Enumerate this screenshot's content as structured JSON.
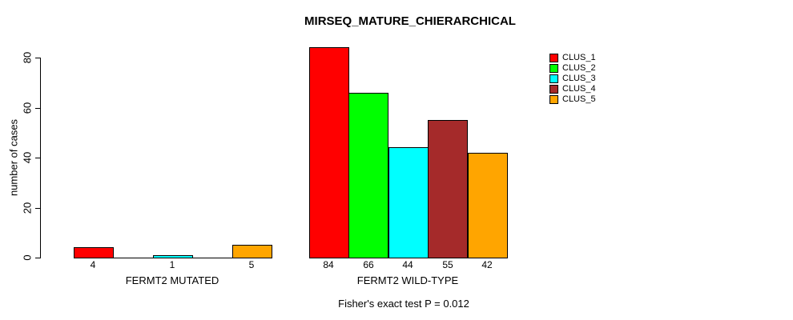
{
  "chart_data": {
    "type": "bar",
    "title": "MIRSEQ_MATURE_CHIERARCHICAL",
    "ylabel": "number of cases",
    "xlabel": "",
    "ylim": [
      0,
      80
    ],
    "yticks": [
      "0",
      "20",
      "40",
      "60",
      "80"
    ],
    "grid": false,
    "legend_position": "top-right",
    "series": [
      {
        "name": "CLUS_1",
        "color": "#ff0000"
      },
      {
        "name": "CLUS_2",
        "color": "#00ff00"
      },
      {
        "name": "CLUS_3",
        "color": "#00ffff"
      },
      {
        "name": "CLUS_4",
        "color": "#a52a2a"
      },
      {
        "name": "CLUS_5",
        "color": "#ffa500"
      }
    ],
    "groups": [
      {
        "label": "FERMT2 MUTATED",
        "values": [
          4,
          0,
          1,
          0,
          5
        ],
        "bar_labels": [
          "4",
          "",
          "1",
          "",
          "5"
        ]
      },
      {
        "label": "FERMT2 WILD-TYPE",
        "values": [
          84,
          66,
          44,
          55,
          42
        ],
        "bar_labels": [
          "84",
          "66",
          "44",
          "55",
          "42"
        ]
      }
    ],
    "annotation": "Fisher's exact test P = 0.012",
    "colors": {
      "axis": "#000000",
      "background": "#ffffff",
      "text": "#000000"
    }
  }
}
